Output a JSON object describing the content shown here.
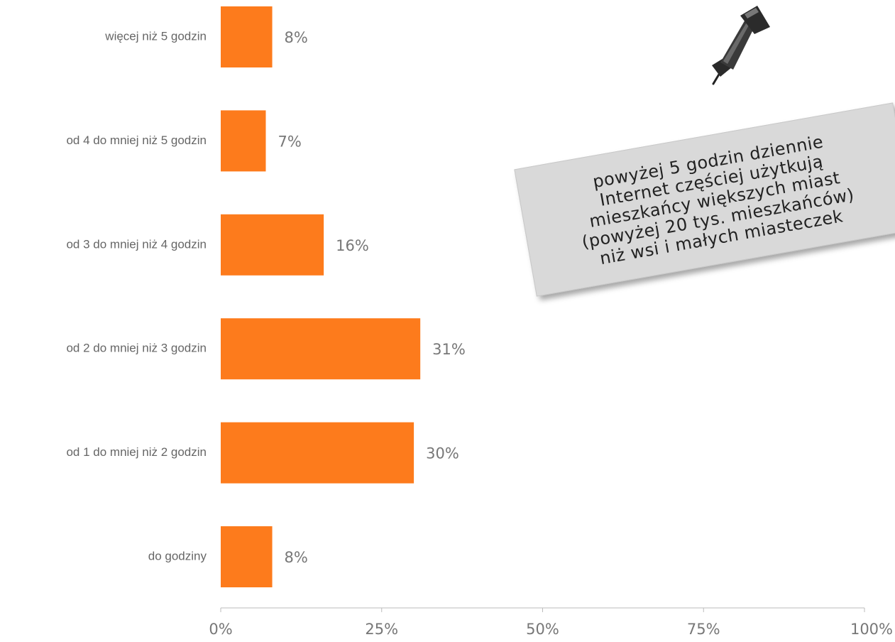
{
  "chart_data": {
    "type": "bar",
    "orientation": "horizontal",
    "categories": [
      "więcej niż 5 godzin",
      "od 4 do mniej niż 5 godzin",
      "od 3 do mniej niż 4 godzin",
      "od 2 do mniej niż 3 godzin",
      "od 1 do mniej niż 2 godzin",
      "do godziny"
    ],
    "values": [
      8,
      7,
      16,
      31,
      30,
      8
    ],
    "value_labels": [
      "8%",
      "7%",
      "16%",
      "31%",
      "30%",
      "8%"
    ],
    "xlim": [
      0,
      100
    ],
    "xticks": [
      0,
      25,
      50,
      75,
      100
    ],
    "xtick_labels": [
      "0%",
      "25%",
      "50%",
      "75%",
      "100%"
    ],
    "grid": false,
    "bar_color": "#fd7b1c"
  },
  "note": {
    "lines": [
      "powyżej 5 godzin dziennie",
      "Internet częściej użytkują",
      "mieszkańcy większych miast",
      "(powyżej 20 tys. mieszkańców)",
      "niż wsi i małych miasteczek"
    ],
    "background": "#d9d9d9",
    "icon": "pushpin-icon"
  }
}
